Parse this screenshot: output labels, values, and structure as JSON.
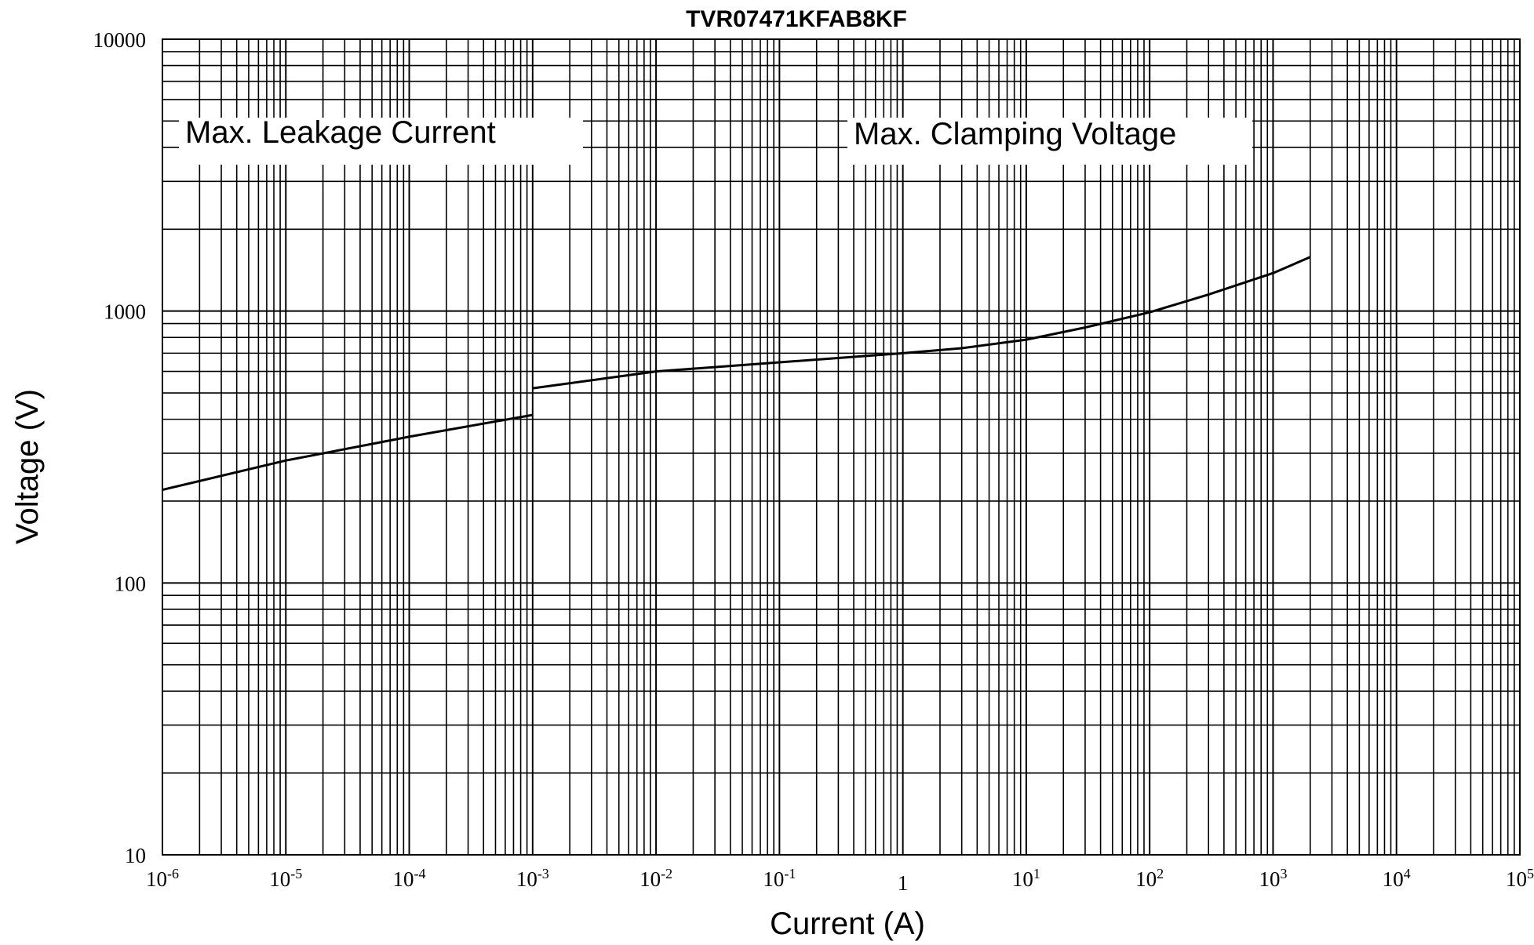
{
  "chart_data": {
    "type": "line",
    "title": "TVR07471KFAB8KF",
    "xlabel": "Current (A)",
    "ylabel": "Voltage   (V)",
    "x_scale": "log",
    "y_scale": "log",
    "xlim": [
      1e-06,
      100000
    ],
    "ylim": [
      10,
      10000
    ],
    "x_ticks": [
      {
        "base": "10",
        "exp": "-6",
        "value": 1e-06
      },
      {
        "base": "10",
        "exp": "-5",
        "value": 1e-05
      },
      {
        "base": "10",
        "exp": "-4",
        "value": 0.0001
      },
      {
        "base": "10",
        "exp": "-3",
        "value": 0.001
      },
      {
        "base": "10",
        "exp": "-2",
        "value": 0.01
      },
      {
        "base": "10",
        "exp": "-1",
        "value": 0.1
      },
      {
        "base": "1",
        "exp": "",
        "value": 1
      },
      {
        "base": "10",
        "exp": "1",
        "value": 10
      },
      {
        "base": "10",
        "exp": "2",
        "value": 100
      },
      {
        "base": "10",
        "exp": "3",
        "value": 1000
      },
      {
        "base": "10",
        "exp": "4",
        "value": 10000
      },
      {
        "base": "10",
        "exp": "5",
        "value": 100000
      }
    ],
    "y_ticks": [
      {
        "label": "10",
        "value": 10
      },
      {
        "label": "100",
        "value": 100
      },
      {
        "label": "1000",
        "value": 1000
      },
      {
        "label": "10000",
        "value": 10000
      }
    ],
    "grid": true,
    "annotations": [
      "Max. Leakage Current",
      "Max.  Clamping  Voltage"
    ],
    "series": [
      {
        "values": [
          [
            1e-06,
            220
          ],
          [
            1e-05,
            282
          ],
          [
            0.0001,
            345
          ],
          [
            0.001,
            415
          ]
        ]
      },
      {
        "values": [
          [
            0.001,
            520
          ],
          [
            0.01,
            600
          ],
          [
            0.1,
            648
          ],
          [
            1,
            700
          ],
          [
            3,
            730
          ],
          [
            10,
            785
          ],
          [
            30,
            870
          ],
          [
            100,
            990
          ],
          [
            300,
            1150
          ],
          [
            1000,
            1380
          ],
          [
            2000,
            1580
          ]
        ]
      }
    ]
  }
}
